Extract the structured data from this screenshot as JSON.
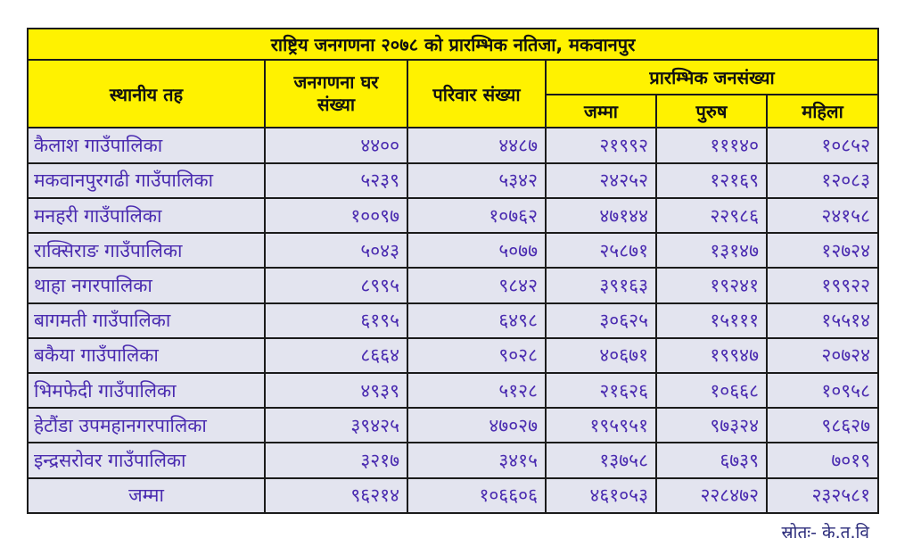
{
  "title": "राष्ट्रिय जनगणना २०७८ को प्रारम्भिक नतिजा, मकवानपुर",
  "headers": {
    "local_level": "स्थानीय तह",
    "households_line1": "जनगणना घर",
    "households_line2": "संख्या",
    "families": "परिवार संख्या",
    "population_group": "प्रारम्भिक जनसंख्या",
    "total": "जम्मा",
    "male": "पुरुष",
    "female": "महिला"
  },
  "rows": [
    {
      "name": "कैलाश गाउँपालिका",
      "households": "४४००",
      "families": "४४८७",
      "total": "२१९९२",
      "male": "१११४०",
      "female": "१०८५२"
    },
    {
      "name": "मकवानपुरगढी गाउँपालिका",
      "households": "५२३९",
      "families": "५३४२",
      "total": "२४२५२",
      "male": "१२१६९",
      "female": "१२०८३"
    },
    {
      "name": "मनहरी गाउँपालिका",
      "households": "१००९७",
      "families": "१०७६२",
      "total": "४७१४४",
      "male": "२२९८६",
      "female": "२४१५८"
    },
    {
      "name": "राक्सिराङ गाउँपालिका",
      "households": "५०४३",
      "families": "५०७७",
      "total": "२५८७१",
      "male": "१३१४७",
      "female": "१२७२४"
    },
    {
      "name": "थाहा नगरपालिका",
      "households": "८९९५",
      "families": "९८४२",
      "total": "३९१६३",
      "male": "१९२४१",
      "female": "१९९२२"
    },
    {
      "name": "बागमती गाउँपालिका",
      "households": "६१९५",
      "families": "६४९८",
      "total": "३०६२५",
      "male": "१५१११",
      "female": "१५५१४"
    },
    {
      "name": "बकैया गाउँपालिका",
      "households": "८६६४",
      "families": "९०२८",
      "total": "४०६७१",
      "male": "१९९४७",
      "female": "२०७२४"
    },
    {
      "name": "भिमफेदी गाउँपालिका",
      "households": "४९३९",
      "families": "५१२८",
      "total": "२१६२६",
      "male": "१०६६८",
      "female": "१०९५८"
    },
    {
      "name": "हेटौंडा उपमहानगरपालिका",
      "households": "३९४२५",
      "families": "४७०२७",
      "total": "१९५९५१",
      "male": "९७३२४",
      "female": "९८६२७"
    },
    {
      "name": "इन्द्रसरोवर गाउँपालिका",
      "households": "३२१७",
      "families": "३४१५",
      "total": "१३७५८",
      "male": "६७३९",
      "female": "७०१९"
    }
  ],
  "total_row": {
    "name": "जम्मा",
    "households": "९६२१४",
    "families": "१०६६०६",
    "total": "४६१०५३",
    "male": "२२८४७२",
    "female": "२३२५८१"
  },
  "source": "स्रोतः- के.त.वि",
  "colors": {
    "header_bg": "#fff200",
    "row_bg": "#e3e4ef",
    "data_text": "#4a2bb0"
  }
}
